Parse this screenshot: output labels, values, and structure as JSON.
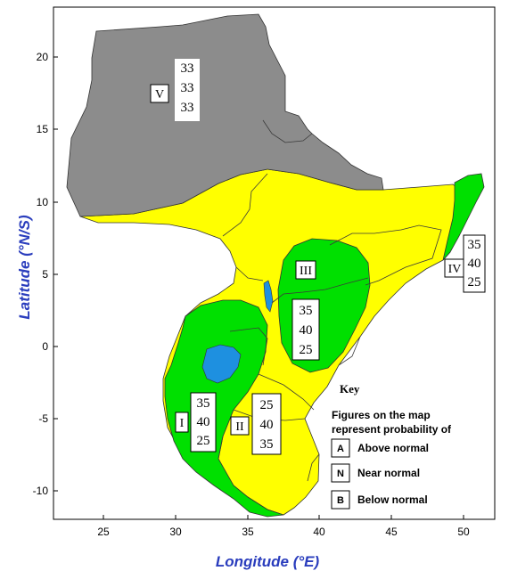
{
  "map": {
    "x_axis": {
      "label": "Longitude (°E)",
      "ticks": [
        "25",
        "30",
        "35",
        "40",
        "45",
        "50"
      ]
    },
    "y_axis": {
      "label": "Latitude (°N/S)",
      "ticks": [
        "20",
        "15",
        "10",
        "5",
        "0",
        "-5",
        "-10"
      ]
    },
    "colors": {
      "zone_V": "#8c8c8c",
      "zone_yellow": "#ffff00",
      "zone_green": "#00e000",
      "lake": "#1e90e0",
      "axis_title": "#2a3dbd"
    },
    "zones": [
      {
        "id": "V",
        "label": "V",
        "probabilities": [
          "33",
          "33",
          "33"
        ]
      },
      {
        "id": "III",
        "label": "III",
        "probabilities": [
          "35",
          "40",
          "25"
        ]
      },
      {
        "id": "IV",
        "label": "IV",
        "probabilities": [
          "35",
          "40",
          "25"
        ]
      },
      {
        "id": "I",
        "label": "I",
        "probabilities": [
          "35",
          "40",
          "25"
        ]
      },
      {
        "id": "II",
        "label": "II",
        "probabilities": [
          "25",
          "40",
          "35"
        ]
      }
    ],
    "key": {
      "title": "Key",
      "description_line1": "Figures on the map",
      "description_line2": "represent probability of",
      "items": [
        {
          "letter": "A",
          "label": "Above normal"
        },
        {
          "letter": "N",
          "label": "Near normal"
        },
        {
          "letter": "B",
          "label": "Below normal"
        }
      ]
    }
  }
}
